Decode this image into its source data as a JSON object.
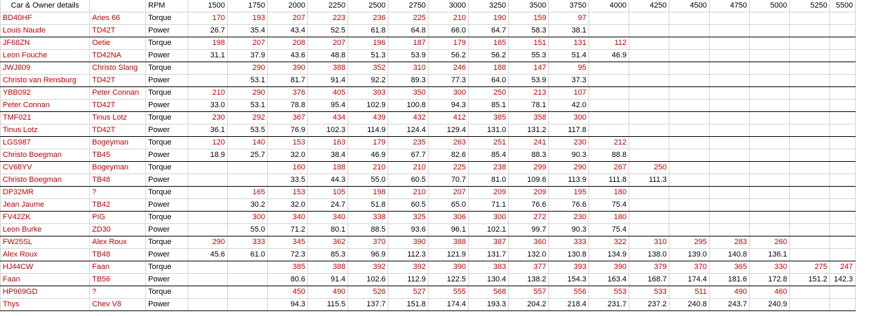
{
  "header": {
    "car_owner": "Car & Owner details",
    "rpm": "RPM",
    "rpm_values": [
      "1500",
      "1750",
      "2000",
      "2250",
      "2500",
      "2750",
      "3000",
      "3250",
      "3500",
      "3750",
      "4000",
      "4250",
      "4500",
      "4750",
      "5000",
      "5250",
      "5500"
    ]
  },
  "colors": {
    "red_text": "#c00000",
    "black_text": "#000000",
    "grid": "#d4d4d4",
    "group_border": "#000000"
  },
  "cars": [
    {
      "reg": "BD40HF",
      "owner": "Louis Naude",
      "nickname": "Aries 66",
      "engine": "TD42T",
      "torque_label": "Torque",
      "power_label": "Power",
      "torque": [
        "170",
        "193",
        "207",
        "223",
        "236",
        "225",
        "210",
        "190",
        "159",
        "97",
        "",
        "",
        "",
        "",
        "",
        "",
        ""
      ],
      "power": [
        "26.7",
        "35.4",
        "43.4",
        "52.5",
        "61.8",
        "64.8",
        "66.0",
        "64.7",
        "58.3",
        "38.1",
        "",
        "",
        "",
        "",
        "",
        "",
        ""
      ]
    },
    {
      "reg": "JF68ZN",
      "owner": "Leon Fouche",
      "nickname": "Oetie",
      "engine": "TD42NA",
      "torque_label": "Torque",
      "power_label": "Power",
      "torque": [
        "198",
        "207",
        "208",
        "207",
        "196",
        "187",
        "179",
        "165",
        "151",
        "131",
        "112",
        "",
        "",
        "",
        "",
        "",
        ""
      ],
      "power": [
        "31.1",
        "37.9",
        "43.6",
        "48.8",
        "51.3",
        "53.9",
        "56.2",
        "56.2",
        "55.3",
        "51.4",
        "46.9",
        "",
        "",
        "",
        "",
        "",
        ""
      ]
    },
    {
      "reg": "JWJ809",
      "owner": "Christo van Rensburg",
      "nickname": "Christo Slang",
      "engine": "TD42T",
      "torque_label": "Torque",
      "power_label": "Power",
      "torque": [
        "",
        "290",
        "390",
        "388",
        "352",
        "310",
        "246",
        "188",
        "147",
        "95",
        "",
        "",
        "",
        "",
        "",
        "",
        ""
      ],
      "power": [
        "",
        "53.1",
        "81.7",
        "91.4",
        "92.2",
        "89.3",
        "77.3",
        "64.0",
        "53.9",
        "37.3",
        "",
        "",
        "",
        "",
        "",
        "",
        ""
      ]
    },
    {
      "reg": "YBB092",
      "owner": "Peter Connan",
      "nickname": "Peter Connan",
      "engine": "TD42T",
      "torque_label": "Torque",
      "power_label": "Power",
      "torque": [
        "210",
        "290",
        "376",
        "405",
        "393",
        "350",
        "300",
        "250",
        "213",
        "107",
        "",
        "",
        "",
        "",
        "",
        "",
        ""
      ],
      "power": [
        "33.0",
        "53.1",
        "78.8",
        "95.4",
        "102.9",
        "100.8",
        "94.3",
        "85.1",
        "78.1",
        "42.0",
        "",
        "",
        "",
        "",
        "",
        "",
        ""
      ]
    },
    {
      "reg": "TMF021",
      "owner": "Tinus Lotz",
      "nickname": "Tinus Lotz",
      "engine": "TD42T",
      "torque_label": "Torque",
      "power_label": "Power",
      "torque": [
        "230",
        "292",
        "367",
        "434",
        "439",
        "432",
        "412",
        "385",
        "358",
        "300",
        "",
        "",
        "",
        "",
        "",
        "",
        ""
      ],
      "power": [
        "36.1",
        "53.5",
        "76.9",
        "102.3",
        "114.9",
        "124.4",
        "129.4",
        "131.0",
        "131.2",
        "117.8",
        "",
        "",
        "",
        "",
        "",
        "",
        ""
      ]
    },
    {
      "reg": "LGS987",
      "owner": "Christo Boegman",
      "nickname": "Bogeyman",
      "engine": "TB45",
      "torque_label": "Torque",
      "power_label": "Power",
      "torque": [
        "120",
        "140",
        "153",
        "163",
        "179",
        "235",
        "263",
        "251",
        "241",
        "230",
        "212",
        "",
        "",
        "",
        "",
        "",
        ""
      ],
      "power": [
        "18.9",
        "25.7",
        "32.0",
        "38.4",
        "46.9",
        "67.7",
        "82.6",
        "85.4",
        "88.3",
        "90.3",
        "88.8",
        "",
        "",
        "",
        "",
        "",
        ""
      ]
    },
    {
      "reg": "CV68YV",
      "owner": "Christo Boegman",
      "nickname": "Bogeyman",
      "engine": "TB48",
      "torque_label": "Torque",
      "power_label": "Power",
      "torque": [
        "",
        "",
        "160",
        "188",
        "210",
        "210",
        "225",
        "238",
        "299",
        "290",
        "267",
        "250",
        "",
        "",
        "",
        "",
        ""
      ],
      "power": [
        "",
        "",
        "33.5",
        "44.3",
        "55.0",
        "60.5",
        "70.7",
        "81.0",
        "109.6",
        "113.9",
        "111.8",
        "111.3",
        "",
        "",
        "",
        "",
        ""
      ]
    },
    {
      "reg": "DP32MR",
      "owner": "Jean Jaume",
      "nickname": "?",
      "engine": "TB42",
      "torque_label": "Torque",
      "power_label": "Power",
      "torque": [
        "",
        "165",
        "153",
        "105",
        "198",
        "210",
        "207",
        "209",
        "209",
        "195",
        "180",
        "",
        "",
        "",
        "",
        "",
        ""
      ],
      "power": [
        "",
        "30.2",
        "32.0",
        "24.7",
        "51.8",
        "60.5",
        "65.0",
        "71.1",
        "76.6",
        "76.6",
        "75.4",
        "",
        "",
        "",
        "",
        "",
        ""
      ]
    },
    {
      "reg": "FV42ZK",
      "owner": "Leon Burke",
      "nickname": "PIG",
      "engine": "ZD30",
      "torque_label": "Torque",
      "power_label": "Power",
      "torque": [
        "",
        "300",
        "340",
        "340",
        "338",
        "325",
        "306",
        "300",
        "272",
        "230",
        "180",
        "",
        "",
        "",
        "",
        "",
        ""
      ],
      "power": [
        "",
        "55.0",
        "71.2",
        "80.1",
        "88.5",
        "93.6",
        "96.1",
        "102.1",
        "99.7",
        "90.3",
        "75.4",
        "",
        "",
        "",
        "",
        "",
        ""
      ]
    },
    {
      "reg": "FW25SL",
      "owner": "Alex Roux",
      "nickname": "Alex Roux",
      "engine": "TB48",
      "torque_label": "Torque",
      "power_label": "Power",
      "torque": [
        "290",
        "333",
        "345",
        "362",
        "370",
        "390",
        "388",
        "387",
        "360",
        "333",
        "322",
        "310",
        "295",
        "283",
        "260",
        "",
        ""
      ],
      "power": [
        "45.6",
        "61.0",
        "72.3",
        "85.3",
        "96.9",
        "112.3",
        "121.9",
        "131.7",
        "132.0",
        "130.8",
        "134.9",
        "138.0",
        "139.0",
        "140.8",
        "136.1",
        "",
        ""
      ]
    },
    {
      "reg": "HJ44CW",
      "owner": "Faan",
      "nickname": "Faan",
      "engine": "TB56",
      "torque_label": "Torque",
      "power_label": "Power",
      "torque": [
        "",
        "",
        "385",
        "388",
        "392",
        "392",
        "390",
        "383",
        "377",
        "393",
        "390",
        "379",
        "370",
        "365",
        "330",
        "275",
        "247"
      ],
      "power": [
        "",
        "",
        "80.6",
        "91.4",
        "102.6",
        "112.9",
        "122.5",
        "130.4",
        "138.2",
        "154.3",
        "163.4",
        "168.7",
        "174.4",
        "181.6",
        "172.8",
        "151.2",
        "142.3"
      ]
    },
    {
      "reg": "HP969GD",
      "owner": "Thys",
      "nickname": "?",
      "engine": "Chev V8",
      "torque_label": "Torque",
      "power_label": "Power",
      "torque": [
        "",
        "",
        "450",
        "490",
        "526",
        "527",
        "555",
        "568",
        "557",
        "556",
        "553",
        "533",
        "511",
        "490",
        "460",
        "",
        ""
      ],
      "power": [
        "",
        "",
        "94.3",
        "115.5",
        "137.7",
        "151.8",
        "174.4",
        "193.3",
        "204.2",
        "218.4",
        "231.7",
        "237.2",
        "240.8",
        "243.7",
        "240.9",
        "",
        ""
      ]
    }
  ]
}
